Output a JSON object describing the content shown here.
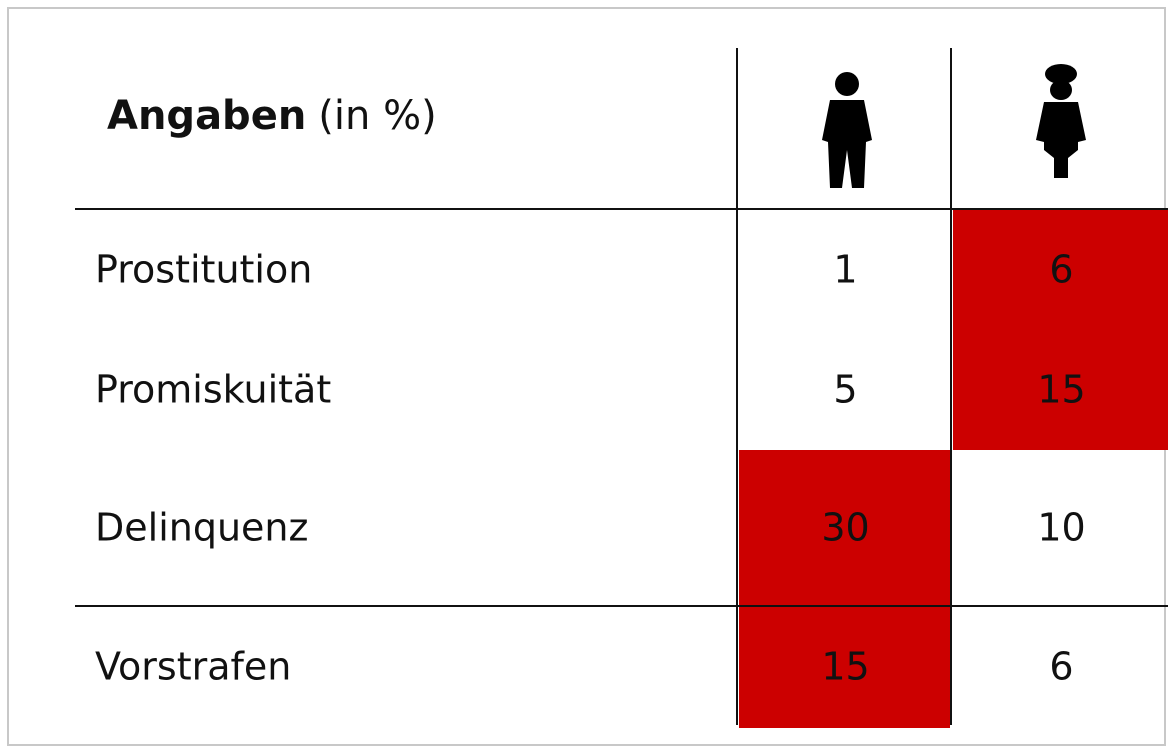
{
  "header": {
    "title_bold": "Angaben",
    "title_rest": "(in %)"
  },
  "highlight_color": "#cc0000",
  "table": {
    "rows": [
      {
        "label": "Prostitution",
        "cells": [
          "1",
          "6"
        ],
        "highlighted": [
          false,
          true
        ]
      },
      {
        "label": "Promiskuität",
        "cells": [
          "5",
          "15"
        ],
        "highlighted": [
          false,
          true
        ]
      },
      {
        "label": "Delinquenz",
        "cells": [
          "30",
          "10"
        ],
        "highlighted": [
          true,
          false
        ]
      },
      {
        "label": "Vorstrafen",
        "cells": [
          "15",
          "6"
        ],
        "highlighted": [
          true,
          false
        ]
      }
    ]
  }
}
